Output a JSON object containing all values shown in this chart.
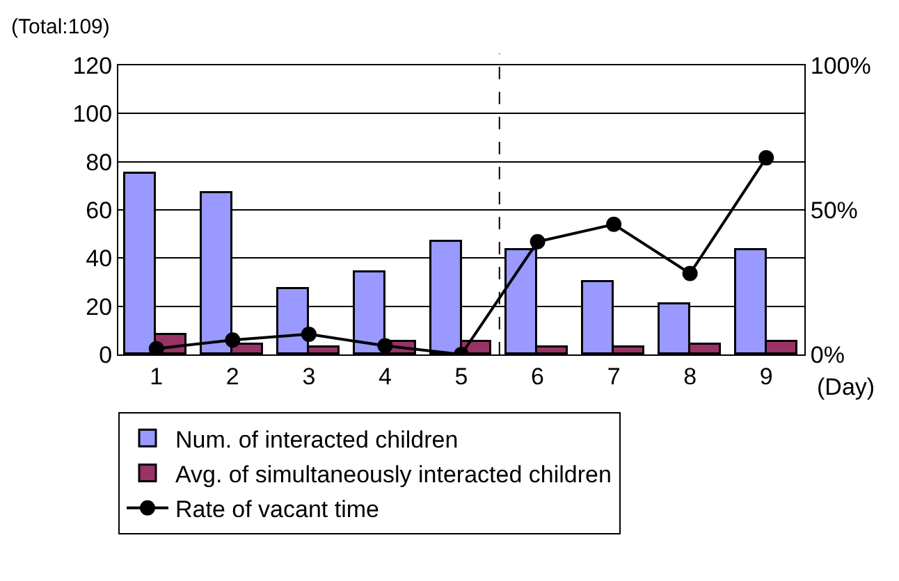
{
  "chart_data": {
    "type": "bar",
    "ylabel": "(Total:109)",
    "xlabel": "(Day)",
    "x": [
      1,
      2,
      3,
      4,
      5,
      6,
      7,
      8,
      9
    ],
    "xlim": [
      0.5,
      9.5
    ],
    "xticks": [
      1,
      2,
      3,
      4,
      5,
      6,
      7,
      8,
      9
    ],
    "ylim": [
      0,
      120
    ],
    "yticks": [
      0,
      20,
      40,
      60,
      80,
      100,
      120
    ],
    "y2lim": [
      0,
      100
    ],
    "y2ticks": [
      {
        "value": 0,
        "label": "0%"
      },
      {
        "value": 50,
        "label": "50%"
      },
      {
        "value": 100,
        "label": "100%"
      }
    ],
    "series": [
      {
        "name": "Num. of interacted children",
        "color": "#9999ff",
        "values": [
          75,
          67,
          27,
          34,
          47,
          43,
          30,
          21,
          43
        ]
      },
      {
        "name": "Avg. of simultaneously interacted children",
        "color": "#993366",
        "values": [
          8,
          4,
          3,
          5,
          5,
          3,
          3,
          4,
          5
        ]
      },
      {
        "name": "Rate of vacant time",
        "type": "line",
        "axis": "y2",
        "color": "#000000",
        "marker": "circle",
        "values": [
          2,
          5,
          7,
          3,
          0,
          39,
          45,
          28,
          68
        ]
      }
    ],
    "ref_lines": [
      {
        "axis": "x",
        "value": 5.5,
        "line_style": "dashed",
        "color": "#000000"
      }
    ],
    "grid": "y",
    "legend": "bottom"
  }
}
